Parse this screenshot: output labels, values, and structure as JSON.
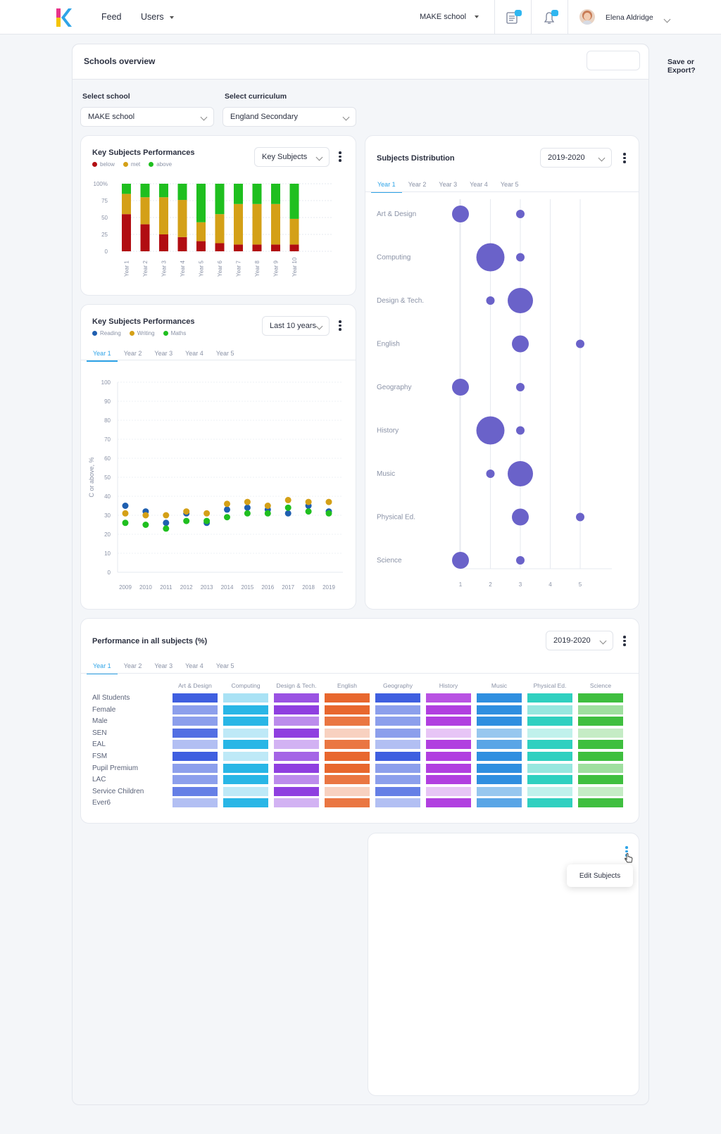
{
  "nav": {
    "feed": "Feed",
    "users": "Users",
    "school": "MAKE school",
    "user_name": "Elena Aldridge"
  },
  "page": {
    "title": "Schools overview",
    "save_export": "Save or Export?",
    "select_school_label": "Select school",
    "select_school_value": "MAKE school",
    "select_curriculum_label": "Select curriculum",
    "select_curriculum_value": "England Secondary"
  },
  "card1": {
    "title": "Key Subjects Performances",
    "dropdown": "Key Subjects",
    "legend": [
      "below",
      "met",
      "above"
    ]
  },
  "card2": {
    "title": "Key Subjects Performances",
    "dropdown": "Last 10 years",
    "legend": [
      "Reading",
      "Writing",
      "Maths"
    ],
    "tabs": [
      "Year 1",
      "Year 2",
      "Year 3",
      "Year 4",
      "Year 5"
    ],
    "ylabel": "C or above, %"
  },
  "card3": {
    "title": "Subjects Distribution",
    "dropdown": "2019-2020",
    "tabs": [
      "Year 1",
      "Year 2",
      "Year 3",
      "Year 4",
      "Year 5"
    ]
  },
  "card4": {
    "title": "Performance in all subjects (%)",
    "dropdown": "2019-2020",
    "tabs": [
      "Year 1",
      "Year 2",
      "Year 3",
      "Year 4",
      "Year 5"
    ],
    "columns": [
      "Art & Design",
      "Computing",
      "Design & Tech.",
      "English",
      "Geography",
      "History",
      "Music",
      "Physical Ed.",
      "Science"
    ],
    "rows": [
      "All Students",
      "Female",
      "Male",
      "SEN",
      "EAL",
      "FSM",
      "Pupil Premium",
      "LAC",
      "Service Children",
      "Ever6"
    ]
  },
  "card5": {
    "popover": "Edit Subjects"
  },
  "colors": {
    "below": "#b10d12",
    "met": "#d4a017",
    "above": "#1fbf1f",
    "reading": "#1f5fb0",
    "writing": "#d4a017",
    "maths": "#1fbf1f",
    "bubble": "#6a62c9",
    "accent": "#2fa4e7"
  },
  "chart_data": [
    {
      "type": "bar",
      "stacked": true,
      "categories": [
        "Year 1",
        "Year 2",
        "Year 3",
        "Year 4",
        "Year 5",
        "Year 6",
        "Year 7",
        "Year 8",
        "Year 9",
        "Year 10"
      ],
      "series": [
        {
          "name": "below",
          "values": [
            55,
            40,
            25,
            21,
            15,
            12,
            10,
            10,
            10,
            10
          ]
        },
        {
          "name": "met",
          "values": [
            30,
            40,
            55,
            55,
            28,
            43,
            60,
            60,
            60,
            38
          ]
        },
        {
          "name": "above",
          "values": [
            15,
            20,
            20,
            24,
            57,
            45,
            30,
            30,
            30,
            52
          ]
        }
      ],
      "yticks": [
        "100%",
        "75",
        "50",
        "25",
        "0"
      ],
      "ylim": [
        0,
        100
      ],
      "grid": true
    },
    {
      "type": "scatter",
      "x": [
        "2009",
        "2010",
        "2011",
        "2012",
        "2013",
        "2014",
        "2015",
        "2016",
        "2017",
        "2018",
        "2019"
      ],
      "series": [
        {
          "name": "Reading",
          "values": [
            35,
            32,
            26,
            31,
            26,
            33,
            34,
            33,
            31,
            35,
            32
          ]
        },
        {
          "name": "Writing",
          "values": [
            31,
            30,
            30,
            32,
            31,
            36,
            37,
            35,
            38,
            37,
            37
          ]
        },
        {
          "name": "Maths",
          "values": [
            26,
            25,
            23,
            27,
            27,
            29,
            31,
            31,
            34,
            32,
            31
          ]
        }
      ],
      "yticks": [
        0,
        10,
        20,
        30,
        40,
        50,
        60,
        70,
        80,
        90,
        100
      ],
      "ylim": [
        0,
        100
      ],
      "ylabel": "C or above, %"
    },
    {
      "type": "scatter",
      "categories": [
        "Art & Design",
        "Computing",
        "Design & Tech.",
        "English",
        "Geography",
        "History",
        "Music",
        "Physical Ed.",
        "Science"
      ],
      "xticks": [
        1,
        2,
        3,
        4,
        5
      ],
      "points": [
        [
          {
            "x": 1,
            "size": 3
          },
          {
            "x": 3,
            "size": 1
          }
        ],
        [
          {
            "x": 2,
            "size": 5
          },
          {
            "x": 3,
            "size": 1
          }
        ],
        [
          {
            "x": 2,
            "size": 1
          },
          {
            "x": 3,
            "size": 4
          }
        ],
        [
          {
            "x": 3,
            "size": 3
          },
          {
            "x": 5,
            "size": 1
          }
        ],
        [
          {
            "x": 1,
            "size": 3
          },
          {
            "x": 3,
            "size": 1
          }
        ],
        [
          {
            "x": 2,
            "size": 5
          },
          {
            "x": 3,
            "size": 1
          }
        ],
        [
          {
            "x": 2,
            "size": 1
          },
          {
            "x": 3,
            "size": 4
          }
        ],
        [
          {
            "x": 3,
            "size": 3
          },
          {
            "x": 5,
            "size": 1
          }
        ],
        [
          {
            "x": 1,
            "size": 3
          },
          {
            "x": 3,
            "size": 1
          }
        ]
      ]
    },
    {
      "type": "heatmap",
      "columns": [
        "Art & Design",
        "Computing",
        "Design & Tech.",
        "English",
        "Geography",
        "History",
        "Music",
        "Physical Ed.",
        "Science"
      ],
      "rows": [
        "All Students",
        "Female",
        "Male",
        "SEN",
        "EAL",
        "FSM",
        "Pupil Premium",
        "LAC",
        "Service Children",
        "Ever6"
      ],
      "column_colors": [
        "#3f5fe0",
        "#29b6e6",
        "#8f3fe0",
        "#e8672e",
        "#3f5fe0",
        "#b13fe0",
        "#2f8fe0",
        "#2fd0c0",
        "#3fbf3f"
      ],
      "intensity": [
        [
          1.0,
          0.4,
          0.9,
          1.0,
          1.0,
          0.9,
          1.0,
          1.0,
          1.0
        ],
        [
          0.6,
          1.0,
          1.0,
          1.0,
          0.6,
          1.0,
          1.0,
          0.5,
          0.5
        ],
        [
          0.6,
          1.0,
          0.6,
          0.9,
          0.6,
          1.0,
          1.0,
          1.0,
          1.0
        ],
        [
          0.9,
          0.3,
          1.0,
          0.3,
          0.6,
          0.3,
          0.5,
          0.3,
          0.3
        ],
        [
          0.4,
          1.0,
          0.4,
          0.9,
          0.4,
          1.0,
          0.8,
          1.0,
          1.0
        ],
        [
          1.0,
          0.3,
          0.8,
          1.0,
          1.0,
          1.0,
          1.0,
          1.0,
          1.0
        ],
        [
          0.6,
          1.0,
          1.0,
          1.0,
          0.6,
          1.0,
          1.0,
          0.5,
          0.5
        ],
        [
          0.6,
          1.0,
          0.6,
          0.9,
          0.6,
          1.0,
          1.0,
          1.0,
          1.0
        ],
        [
          0.8,
          0.3,
          1.0,
          0.3,
          0.8,
          0.3,
          0.5,
          0.3,
          0.3
        ],
        [
          0.4,
          1.0,
          0.4,
          0.9,
          0.4,
          1.0,
          0.8,
          1.0,
          1.0
        ]
      ]
    }
  ]
}
